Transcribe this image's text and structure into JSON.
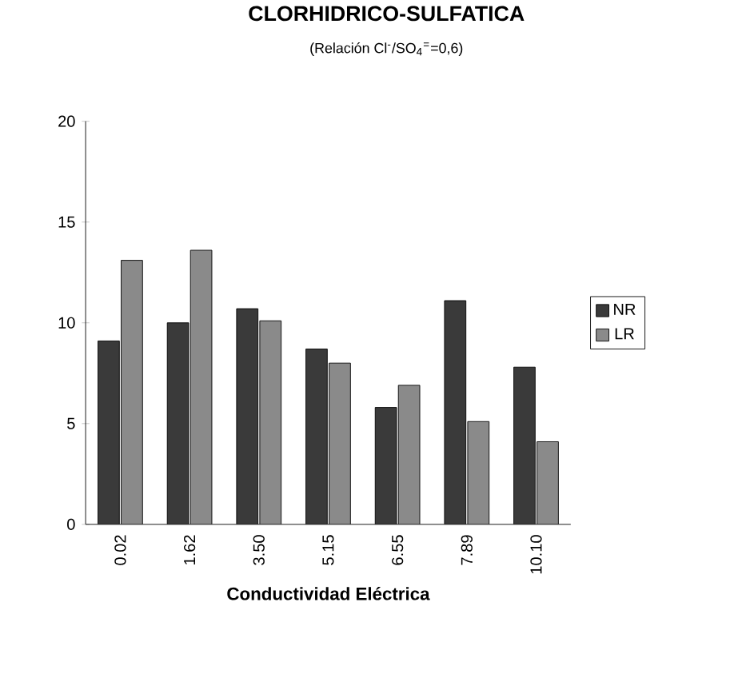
{
  "chart_data": {
    "type": "bar",
    "title": "CLORHIDRICO-SULFATICA",
    "subtitle": "(Relación Cl$^{-}$/SO$_{4}$$^{=}$=0,6)",
    "xlabel": "Conductividad Eléctrica",
    "categories": [
      "0.02",
      "1.62",
      "3.50",
      "5.15",
      "6.55",
      "7.89",
      "10.10"
    ],
    "series": [
      {
        "name": "NR",
        "color": "#3a3a3a",
        "values": [
          9.1,
          10.0,
          10.7,
          8.7,
          5.8,
          11.1,
          7.8
        ]
      },
      {
        "name": "LR",
        "color": "#8a8a8a",
        "values": [
          13.1,
          13.6,
          10.1,
          8.0,
          6.9,
          5.1,
          4.1
        ]
      }
    ],
    "ylim": [
      0,
      20
    ],
    "yticks": [
      0,
      5,
      10,
      15,
      20
    ],
    "legend": "right",
    "grid": false
  }
}
